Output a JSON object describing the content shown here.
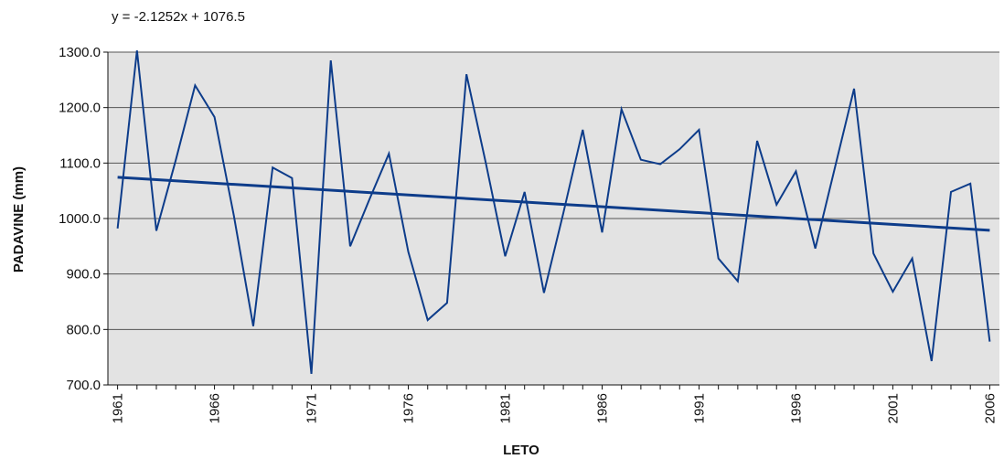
{
  "chart_data": {
    "type": "line",
    "annotation": "y = -2.1252x + 1076.5",
    "y_label": "PADAVINE (mm)",
    "x_label": "LETO",
    "x": [
      1961,
      1962,
      1963,
      1964,
      1965,
      1966,
      1967,
      1968,
      1969,
      1970,
      1971,
      1972,
      1973,
      1974,
      1975,
      1976,
      1977,
      1978,
      1979,
      1980,
      1981,
      1982,
      1983,
      1984,
      1985,
      1986,
      1987,
      1988,
      1989,
      1990,
      1991,
      1992,
      1993,
      1994,
      1995,
      1996,
      1997,
      1998,
      1999,
      2000,
      2001,
      2002,
      2003,
      2004,
      2005,
      2006
    ],
    "series": [
      {
        "color": "#0d3c8a",
        "values": [
          982,
          1303,
          978,
          1105,
          1240,
          1183,
          1005,
          806,
          1092,
          1073,
          720,
          1285,
          950,
          1035,
          1117,
          940,
          817,
          848,
          1260,
          1100,
          932,
          1048,
          866,
          1010,
          1160,
          975,
          1197,
          1106,
          1098,
          1125,
          1160,
          928,
          887,
          1140,
          1025,
          1085,
          946,
          1090,
          1234,
          937,
          868,
          928,
          743,
          1048,
          1063,
          778
        ]
      }
    ],
    "trendline": {
      "slope": -2.1252,
      "intercept": 1076.5,
      "color": "#0d3c8a"
    },
    "xlim": [
      1960.5,
      2006.5
    ],
    "xticks": [
      1961,
      1966,
      1971,
      1976,
      1981,
      1986,
      1991,
      1996,
      2001,
      2006
    ],
    "ylim": [
      700,
      1300
    ],
    "yticks": [
      {
        "value": 700,
        "label": "700.0"
      },
      {
        "value": 800,
        "label": "800.0"
      },
      {
        "value": 900,
        "label": "900.0"
      },
      {
        "value": 1000,
        "label": "1000.0"
      },
      {
        "value": 1100,
        "label": "1100.0"
      },
      {
        "value": 1200,
        "label": "1200.0"
      },
      {
        "value": 1300,
        "label": "1300.0"
      }
    ],
    "grid": true,
    "background": "#e3e3e3"
  }
}
